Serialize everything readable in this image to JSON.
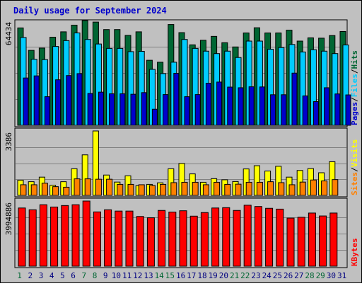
{
  "chart_data": {
    "type": "bar",
    "title": "Daily usage for September 2024",
    "days": [
      "1",
      "2",
      "3",
      "4",
      "5",
      "6",
      "7",
      "8",
      "9",
      "10",
      "11",
      "12",
      "13",
      "14",
      "15",
      "16",
      "17",
      "18",
      "19",
      "20",
      "21",
      "22",
      "23",
      "24",
      "25",
      "26",
      "27",
      "28",
      "29",
      "30",
      "31"
    ],
    "weekend_days": [
      "1",
      "7",
      "8",
      "14",
      "15",
      "21",
      "22",
      "28",
      "29"
    ],
    "colors": {
      "background": "#c0c0c0",
      "frame": "#ececec",
      "title": "#0000cc",
      "hits": "#006633",
      "files": "#00ccff",
      "pages": "#0000cc",
      "visits": "#ffff00",
      "sites": "#ff8000",
      "kbytes": "#ff0000",
      "weekend_label": "#006633",
      "weekday_label": "#000080"
    },
    "panels": [
      {
        "id": "hits",
        "axis_max_label": "64434",
        "ylim": [
          0,
          64434
        ],
        "legend": [
          {
            "key": "pages",
            "text": "Pages"
          },
          {
            "key": "sep1",
            "text": "/"
          },
          {
            "key": "files",
            "text": "Files"
          },
          {
            "key": "sep2",
            "text": "/"
          },
          {
            "key": "hits",
            "text": "Hits"
          }
        ],
        "series": [
          {
            "name": "Hits",
            "values": [
              59900,
              46100,
              47500,
              54200,
              57500,
              61600,
              64400,
              63500,
              58900,
              58900,
              55300,
              57500,
              40000,
              38800,
              62000,
              57000,
              49500,
              52300,
              54700,
              50800,
              48200,
              56800,
              60000,
              56800,
              56800,
              58500,
              51800,
              53800,
              53600,
              55200,
              57700
            ]
          },
          {
            "name": "Files",
            "values": [
              54000,
              40600,
              40400,
              48500,
              52100,
              56800,
              52800,
              50000,
              47300,
              47300,
              45300,
              45500,
              34400,
              31800,
              38800,
              52800,
              47300,
              45600,
              44100,
              45600,
              41700,
              51800,
              51800,
              46800,
              47800,
              49700,
              45100,
              46500,
              45600,
              44100,
              49400
            ]
          },
          {
            "name": "Pages",
            "values": [
              29100,
              30400,
              17600,
              28000,
              30600,
              31800,
              19600,
              20400,
              19400,
              19400,
              19100,
              20100,
              9900,
              18900,
              32000,
              17600,
              18900,
              25900,
              26600,
              23500,
              23100,
              23700,
              23600,
              18800,
              18800,
              32100,
              18100,
              14600,
              23100,
              19300,
              18700
            ]
          }
        ]
      },
      {
        "id": "visits",
        "axis_max_label": "3386",
        "ylim": [
          0,
          3386
        ],
        "legend": [
          {
            "key": "sites",
            "text": "Sites"
          },
          {
            "key": "sep1",
            "text": "/"
          },
          {
            "key": "visits",
            "text": "Visits"
          }
        ],
        "series": [
          {
            "name": "Visits",
            "values": [
              800,
              720,
              960,
              530,
              720,
              1400,
              2130,
              3386,
              1070,
              700,
              1030,
              510,
              580,
              660,
              1400,
              1680,
              1130,
              690,
              880,
              820,
              730,
              1390,
              1560,
              1280,
              1530,
              960,
              1310,
              1410,
              1190,
              1770,
              0
            ]
          },
          {
            "name": "Sites",
            "values": [
              560,
              560,
              640,
              460,
              430,
              870,
              870,
              850,
              850,
              580,
              580,
              560,
              520,
              580,
              670,
              690,
              690,
              560,
              690,
              580,
              590,
              690,
              690,
              720,
              670,
              560,
              700,
              810,
              760,
              830,
              0
            ]
          }
        ]
      },
      {
        "id": "kbytes",
        "axis_max_label": "3994886",
        "ylim": [
          0,
          3994886
        ],
        "legend": [
          {
            "key": "kbytes",
            "text": "KBytes"
          }
        ],
        "series": [
          {
            "name": "KBytes",
            "values": [
              3570000,
              3460000,
              3770000,
              3630000,
              3720000,
              3770000,
              3994886,
              3330000,
              3460000,
              3380000,
              3380000,
              3050000,
              2970000,
              3420000,
              3320000,
              3400000,
              3070000,
              3290000,
              3570000,
              3590000,
              3420000,
              3740000,
              3660000,
              3550000,
              3500000,
              2950000,
              3000000,
              3260000,
              3080000,
              3260000,
              0
            ]
          }
        ]
      }
    ],
    "grid": true
  }
}
